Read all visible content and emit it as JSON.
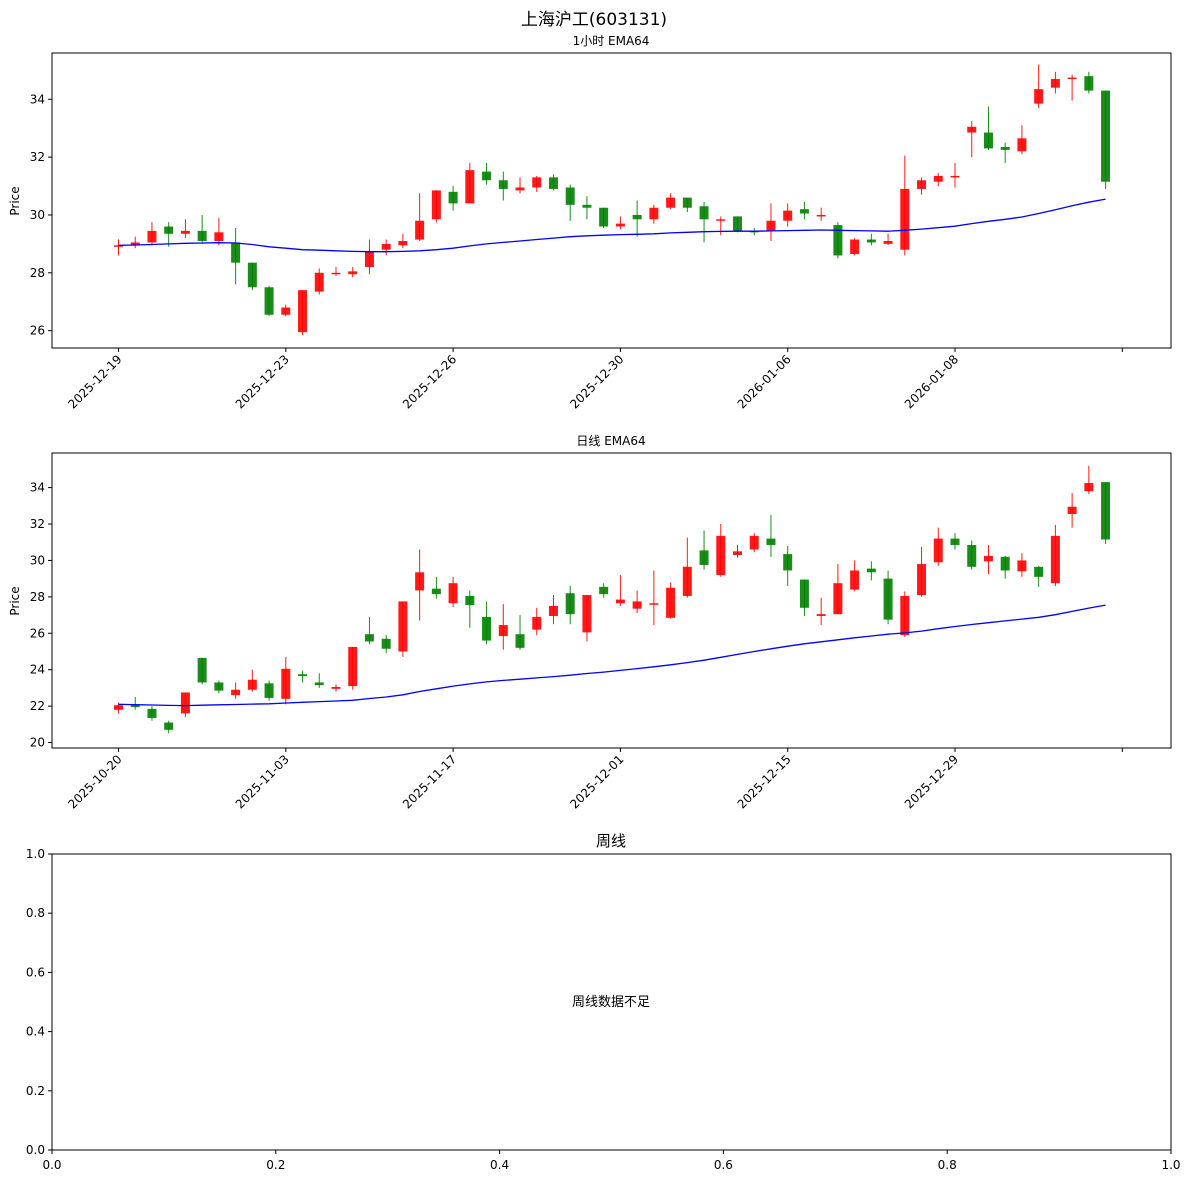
{
  "figure": {
    "suptitle": "上海沪工(603131)"
  },
  "colors": {
    "up": "#ff0000",
    "down": "#008000",
    "ema": "#0000ff",
    "axis": "#000000"
  },
  "chart_data": [
    {
      "type": "candlestick",
      "title": "1小时 EMA64",
      "ylabel": "Price",
      "ylim": [
        25.4,
        35.6
      ],
      "yticks": [
        "26",
        "28",
        "30",
        "32",
        "34"
      ],
      "xtick_labels": [
        "2025-12-19",
        "2025-12-23",
        "2025-12-26",
        "2025-12-30",
        "2026-01-06",
        "2026-01-08",
        ""
      ],
      "candles": [
        [
          28.95,
          28.95,
          29.15,
          28.6
        ],
        [
          28.95,
          29.05,
          29.25,
          28.85
        ],
        [
          29.05,
          29.45,
          29.75,
          28.95
        ],
        [
          29.6,
          29.35,
          29.75,
          28.9
        ],
        [
          29.35,
          29.45,
          29.85,
          29.2
        ],
        [
          29.45,
          29.1,
          30.0,
          29.0
        ],
        [
          29.1,
          29.4,
          29.9,
          28.95
        ],
        [
          29.05,
          28.35,
          29.55,
          27.6
        ],
        [
          28.35,
          27.5,
          28.35,
          27.4
        ],
        [
          27.5,
          26.55,
          27.55,
          26.5
        ],
        [
          26.55,
          26.8,
          26.9,
          26.5
        ],
        [
          25.95,
          27.4,
          27.4,
          25.85
        ],
        [
          27.35,
          28.0,
          28.15,
          27.25
        ],
        [
          27.95,
          28.0,
          28.2,
          27.9
        ],
        [
          27.95,
          28.05,
          28.2,
          27.85
        ],
        [
          28.2,
          28.75,
          29.15,
          27.95
        ],
        [
          28.8,
          29.0,
          29.15,
          28.6
        ],
        [
          28.95,
          29.1,
          29.35,
          28.85
        ],
        [
          29.15,
          29.8,
          30.75,
          29.1
        ],
        [
          29.85,
          30.85,
          30.85,
          29.75
        ],
        [
          30.8,
          30.4,
          31.0,
          30.15
        ],
        [
          30.4,
          31.55,
          31.8,
          30.4
        ],
        [
          31.5,
          31.2,
          31.8,
          31.05
        ],
        [
          31.2,
          30.9,
          31.5,
          30.5
        ],
        [
          30.85,
          30.95,
          31.3,
          30.75
        ],
        [
          30.95,
          31.3,
          31.35,
          30.8
        ],
        [
          31.3,
          30.9,
          31.4,
          30.85
        ],
        [
          30.95,
          30.35,
          31.05,
          29.8
        ],
        [
          30.35,
          30.25,
          30.65,
          29.85
        ],
        [
          30.25,
          29.6,
          30.25,
          29.55
        ],
        [
          29.6,
          29.7,
          29.95,
          29.5
        ],
        [
          30.0,
          29.85,
          30.5,
          29.25
        ],
        [
          29.85,
          30.25,
          30.35,
          29.7
        ],
        [
          30.25,
          30.6,
          30.75,
          30.2
        ],
        [
          30.6,
          30.25,
          30.6,
          30.1
        ],
        [
          30.3,
          29.85,
          30.45,
          29.05
        ],
        [
          29.8,
          29.85,
          29.95,
          29.3
        ],
        [
          29.95,
          29.45,
          29.95,
          29.4
        ],
        [
          29.45,
          29.4,
          29.55,
          29.3
        ],
        [
          29.45,
          29.8,
          30.4,
          29.1
        ],
        [
          29.8,
          30.15,
          30.4,
          29.6
        ],
        [
          30.2,
          30.05,
          30.45,
          29.85
        ],
        [
          30.0,
          30.0,
          30.25,
          29.8
        ],
        [
          29.65,
          28.6,
          29.75,
          28.5
        ],
        [
          28.65,
          29.15,
          29.2,
          28.6
        ],
        [
          29.15,
          29.05,
          29.35,
          28.95
        ],
        [
          29.0,
          29.1,
          29.35,
          28.95
        ],
        [
          28.8,
          30.9,
          32.05,
          28.6
        ],
        [
          30.9,
          31.2,
          31.3,
          30.7
        ],
        [
          31.15,
          31.35,
          31.45,
          31.0
        ],
        [
          31.3,
          31.35,
          31.8,
          30.95
        ],
        [
          32.85,
          33.05,
          33.25,
          32.0
        ],
        [
          32.85,
          32.3,
          33.75,
          32.25
        ],
        [
          32.35,
          32.25,
          32.5,
          31.8
        ],
        [
          32.2,
          32.65,
          33.1,
          32.1
        ],
        [
          33.85,
          34.35,
          35.2,
          33.7
        ],
        [
          34.4,
          34.7,
          34.95,
          34.2
        ],
        [
          34.7,
          34.75,
          34.85,
          33.95
        ],
        [
          34.8,
          34.3,
          34.95,
          34.2
        ],
        [
          34.3,
          31.15,
          34.3,
          30.9
        ]
      ],
      "ema": [
        28.95,
        28.96,
        28.98,
        29.0,
        29.02,
        29.03,
        29.04,
        29.03,
        28.98,
        28.9,
        28.85,
        28.8,
        28.78,
        28.76,
        28.74,
        28.73,
        28.73,
        28.74,
        28.76,
        28.8,
        28.85,
        28.93,
        29.0,
        29.05,
        29.1,
        29.15,
        29.2,
        29.25,
        29.28,
        29.3,
        29.32,
        29.33,
        29.35,
        29.38,
        29.4,
        29.42,
        29.43,
        29.44,
        29.44,
        29.45,
        29.46,
        29.47,
        29.48,
        29.47,
        29.46,
        29.45,
        29.44,
        29.47,
        29.51,
        29.56,
        29.61,
        29.7,
        29.78,
        29.85,
        29.93,
        30.05,
        30.18,
        30.32,
        30.44,
        30.55
      ]
    },
    {
      "type": "candlestick",
      "title": "日线 EMA64",
      "ylabel": "Price",
      "ylim": [
        19.7,
        35.9
      ],
      "yticks": [
        "20",
        "22",
        "24",
        "26",
        "28",
        "30",
        "32",
        "34"
      ],
      "xtick_labels": [
        "2025-10-20",
        "2025-11-03",
        "2025-11-17",
        "2025-12-01",
        "2025-12-15",
        "2025-12-29",
        ""
      ],
      "candles": [
        [
          21.8,
          22.05,
          22.2,
          21.6
        ],
        [
          22.05,
          21.95,
          22.5,
          21.8
        ],
        [
          21.85,
          21.35,
          22.0,
          21.2
        ],
        [
          21.1,
          20.7,
          21.2,
          20.5
        ],
        [
          21.6,
          22.75,
          22.75,
          21.4
        ],
        [
          24.65,
          23.3,
          24.65,
          23.2
        ],
        [
          23.3,
          22.85,
          23.4,
          22.7
        ],
        [
          22.6,
          22.9,
          23.3,
          22.4
        ],
        [
          22.9,
          23.45,
          24.0,
          22.8
        ],
        [
          23.25,
          22.45,
          23.4,
          22.3
        ],
        [
          22.4,
          24.05,
          24.7,
          22.1
        ],
        [
          23.75,
          23.65,
          23.95,
          23.3
        ],
        [
          23.3,
          23.15,
          23.8,
          23.0
        ],
        [
          22.95,
          23.05,
          23.2,
          22.8
        ],
        [
          23.1,
          25.25,
          25.25,
          22.9
        ],
        [
          25.95,
          25.55,
          26.9,
          25.4
        ],
        [
          25.7,
          25.15,
          25.9,
          24.9
        ],
        [
          25.0,
          27.75,
          27.75,
          24.7
        ],
        [
          28.35,
          29.35,
          30.6,
          26.7
        ],
        [
          28.45,
          28.15,
          29.1,
          27.9
        ],
        [
          27.65,
          28.75,
          29.1,
          27.45
        ],
        [
          28.05,
          27.55,
          28.35,
          26.3
        ],
        [
          26.9,
          25.6,
          27.75,
          25.4
        ],
        [
          25.85,
          26.45,
          27.6,
          25.1
        ],
        [
          25.95,
          25.2,
          27.0,
          25.1
        ],
        [
          26.2,
          26.9,
          27.4,
          25.9
        ],
        [
          26.95,
          27.5,
          28.1,
          26.5
        ],
        [
          28.2,
          27.05,
          28.6,
          26.5
        ],
        [
          26.05,
          28.1,
          28.1,
          25.55
        ],
        [
          28.55,
          28.15,
          28.75,
          27.95
        ],
        [
          27.65,
          27.85,
          29.2,
          27.5
        ],
        [
          27.35,
          27.75,
          28.35,
          27.1
        ],
        [
          27.6,
          27.65,
          29.45,
          26.45
        ],
        [
          26.85,
          28.5,
          28.8,
          26.8
        ],
        [
          28.05,
          29.65,
          31.25,
          27.95
        ],
        [
          30.55,
          29.75,
          31.65,
          29.5
        ],
        [
          29.2,
          31.35,
          32.0,
          29.1
        ],
        [
          30.3,
          30.5,
          30.85,
          30.15
        ],
        [
          30.6,
          31.35,
          31.5,
          30.45
        ],
        [
          31.2,
          30.85,
          32.5,
          30.2
        ],
        [
          30.35,
          29.45,
          30.8,
          28.6
        ],
        [
          28.95,
          27.4,
          28.95,
          26.95
        ],
        [
          26.95,
          27.05,
          27.95,
          26.45
        ],
        [
          27.05,
          28.75,
          29.8,
          27.05
        ],
        [
          28.4,
          29.45,
          30.0,
          28.3
        ],
        [
          29.55,
          29.35,
          29.95,
          28.9
        ],
        [
          29.0,
          26.75,
          29.45,
          26.5
        ],
        [
          25.9,
          28.05,
          28.3,
          25.8
        ],
        [
          28.1,
          29.8,
          30.75,
          28.0
        ],
        [
          29.9,
          31.2,
          31.8,
          29.7
        ],
        [
          31.2,
          30.85,
          31.5,
          30.6
        ],
        [
          30.85,
          29.65,
          31.1,
          29.5
        ],
        [
          29.95,
          30.25,
          30.85,
          29.25
        ],
        [
          30.2,
          29.45,
          30.25,
          29.0
        ],
        [
          29.4,
          30.0,
          30.4,
          29.1
        ],
        [
          29.65,
          29.1,
          29.7,
          28.55
        ],
        [
          28.75,
          31.35,
          31.95,
          28.6
        ],
        [
          32.55,
          32.95,
          33.7,
          31.8
        ],
        [
          33.8,
          34.25,
          35.2,
          33.65
        ],
        [
          34.3,
          31.15,
          34.3,
          30.9
        ]
      ],
      "ema": [
        22.1,
        22.08,
        22.06,
        22.04,
        22.03,
        22.05,
        22.07,
        22.09,
        22.11,
        22.13,
        22.17,
        22.21,
        22.25,
        22.28,
        22.32,
        22.42,
        22.5,
        22.62,
        22.8,
        22.95,
        23.1,
        23.22,
        23.33,
        23.41,
        23.48,
        23.55,
        23.62,
        23.7,
        23.79,
        23.87,
        23.96,
        24.06,
        24.16,
        24.27,
        24.39,
        24.52,
        24.68,
        24.84,
        25.0,
        25.15,
        25.29,
        25.42,
        25.53,
        25.64,
        25.75,
        25.85,
        25.95,
        26.02,
        26.12,
        26.25,
        26.37,
        26.48,
        26.58,
        26.68,
        26.78,
        26.88,
        27.02,
        27.2,
        27.38,
        27.55
      ]
    },
    {
      "type": "empty",
      "title": "周线",
      "ylim": [
        0,
        1
      ],
      "xlim": [
        0,
        1
      ],
      "yticks": [
        "0.0",
        "0.2",
        "0.4",
        "0.6",
        "0.8",
        "1.0"
      ],
      "xticks": [
        "0.0",
        "0.2",
        "0.4",
        "0.6",
        "0.8",
        "1.0"
      ],
      "message": "周线数据不足"
    }
  ]
}
